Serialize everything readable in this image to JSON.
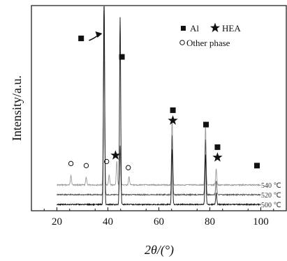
{
  "chart_data": {
    "type": "line",
    "title": "",
    "xlabel": "2θ/(°)",
    "ylabel": "Intensity/a.u.",
    "xlim": [
      10,
      110
    ],
    "x_ticks": [
      "20",
      "40",
      "60",
      "80",
      "100"
    ],
    "legend": {
      "entries": [
        {
          "symbol": "filled-square",
          "label": "Al"
        },
        {
          "symbol": "star",
          "label": "HEA"
        },
        {
          "symbol": "open-circle",
          "label": "Other phase"
        }
      ]
    },
    "series": [
      {
        "name": "540 ℃",
        "color": "#9a9a9a",
        "baseline": 0.2,
        "peaks": [
          [
            25.5,
            0.05
          ],
          [
            31.5,
            0.04
          ],
          [
            38.5,
            1.0
          ],
          [
            40.5,
            0.05
          ],
          [
            43.5,
            0.12
          ],
          [
            44.8,
            0.18
          ],
          [
            48.3,
            0.04
          ],
          [
            65.2,
            0.34
          ],
          [
            78.3,
            0.3
          ],
          [
            82.5,
            0.08
          ]
        ]
      },
      {
        "name": "520 ℃",
        "color": "#555555",
        "baseline": 0.1,
        "peaks": [
          [
            38.5,
            0.9
          ],
          [
            44.8,
            0.25
          ],
          [
            65.2,
            0.3
          ],
          [
            78.3,
            0.28
          ],
          [
            82.5,
            0.07
          ]
        ]
      },
      {
        "name": "500 ℃",
        "color": "#111111",
        "baseline": 0.0,
        "peaks": [
          [
            38.5,
            1.05
          ],
          [
            44.8,
            0.95
          ],
          [
            65.2,
            0.28
          ],
          [
            78.3,
            0.25
          ],
          [
            82.5,
            0.06
          ]
        ]
      }
    ],
    "annotations": [
      {
        "type": "filled-square",
        "x": 29.5,
        "y_frac": 0.84
      },
      {
        "type": "filled-square",
        "x": 45.5,
        "y_frac": 0.75
      },
      {
        "type": "filled-square",
        "x": 65.5,
        "y_frac": 0.49
      },
      {
        "type": "star",
        "x": 65.5,
        "y_frac": 0.44
      },
      {
        "type": "filled-square",
        "x": 78.5,
        "y_frac": 0.42
      },
      {
        "type": "filled-square",
        "x": 83.0,
        "y_frac": 0.31
      },
      {
        "type": "star",
        "x": 83.0,
        "y_frac": 0.26
      },
      {
        "type": "filled-square",
        "x": 98.5,
        "y_frac": 0.22
      },
      {
        "type": "star",
        "x": 43.0,
        "y_frac": 0.27
      },
      {
        "type": "open-circle",
        "x": 25.5,
        "y_frac": 0.23
      },
      {
        "type": "open-circle",
        "x": 31.5,
        "y_frac": 0.22
      },
      {
        "type": "open-circle",
        "x": 39.5,
        "y_frac": 0.24
      },
      {
        "type": "open-circle",
        "x": 48.0,
        "y_frac": 0.21
      }
    ],
    "arrow": {
      "from_x": 31.5,
      "to_x": 37.8
    }
  }
}
